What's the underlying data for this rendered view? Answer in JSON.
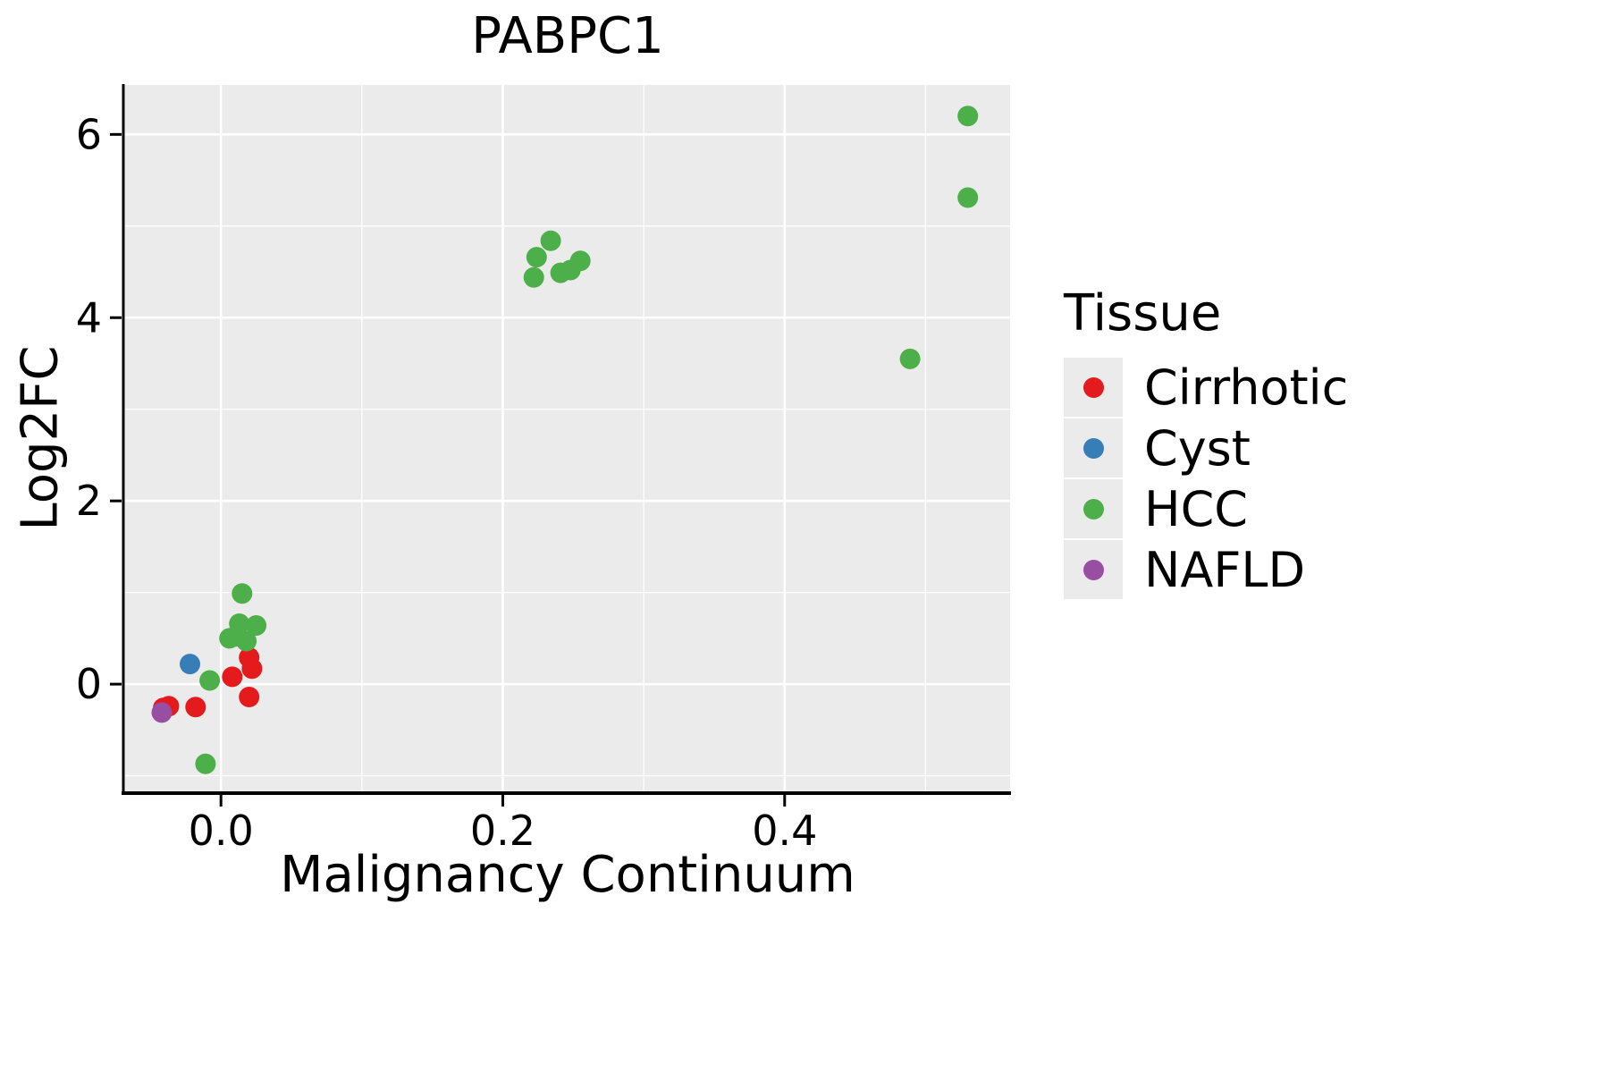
{
  "chart_data": {
    "type": "scatter",
    "title": "PABPC1",
    "xlabel": "Malignancy Continuum",
    "ylabel": "Log2FC",
    "xlim": [
      -0.068,
      0.56
    ],
    "ylim": [
      -1.17,
      6.54
    ],
    "x_major_ticks": [
      0.0,
      0.2,
      0.4
    ],
    "x_tick_labels": [
      "0.0",
      "0.2",
      "0.4"
    ],
    "x_minor_ticks": [
      0.1,
      0.3,
      0.5
    ],
    "y_major_ticks": [
      0,
      2,
      4,
      6
    ],
    "y_tick_labels": [
      "0",
      "2",
      "4",
      "6"
    ],
    "y_minor_ticks": [
      -1,
      1,
      3,
      5
    ],
    "grid": true,
    "legend_position": "right",
    "legend_title": "Tissue",
    "panel_background": "#EBEBEB",
    "grid_color": "#FFFFFF",
    "axis_color": "#000000",
    "series": [
      {
        "name": "Cirrhotic",
        "color": "#E41A1C",
        "points": [
          [
            -0.041,
            -0.26
          ],
          [
            -0.037,
            -0.24
          ],
          [
            -0.018,
            -0.25
          ],
          [
            0.008,
            0.08
          ],
          [
            0.02,
            -0.14
          ],
          [
            0.022,
            0.17
          ],
          [
            0.02,
            0.29
          ]
        ]
      },
      {
        "name": "Cyst",
        "color": "#377EB8",
        "points": [
          [
            -0.022,
            0.22
          ]
        ]
      },
      {
        "name": "HCC",
        "color": "#4DAF4A",
        "points": [
          [
            -0.011,
            -0.87
          ],
          [
            -0.008,
            0.04
          ],
          [
            0.006,
            0.5
          ],
          [
            0.01,
            0.52
          ],
          [
            0.013,
            0.66
          ],
          [
            0.015,
            0.99
          ],
          [
            0.018,
            0.47
          ],
          [
            0.025,
            0.64
          ],
          [
            0.222,
            4.44
          ],
          [
            0.224,
            4.66
          ],
          [
            0.234,
            4.84
          ],
          [
            0.241,
            4.49
          ],
          [
            0.248,
            4.52
          ],
          [
            0.255,
            4.62
          ],
          [
            0.489,
            3.55
          ],
          [
            0.53,
            5.31
          ],
          [
            0.53,
            6.2
          ]
        ]
      },
      {
        "name": "NAFLD",
        "color": "#984EA3",
        "points": [
          [
            -0.042,
            -0.31
          ]
        ]
      }
    ]
  }
}
